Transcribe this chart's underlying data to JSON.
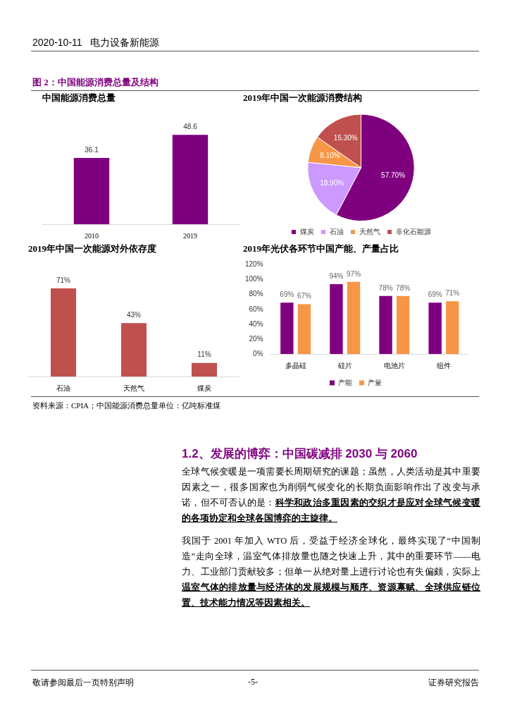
{
  "chart_data": [
    {
      "type": "bar",
      "title": "中国能源消费总量",
      "categories": [
        "2010",
        "2019"
      ],
      "values": [
        36.1,
        48.6
      ],
      "color": "#7f007f",
      "data_labels": true
    },
    {
      "type": "pie",
      "title": "2019年中国一次能源消费结构",
      "categories": [
        "煤炭",
        "石油",
        "天然气",
        "非化石能源"
      ],
      "values": [
        57.7,
        18.9,
        8.1,
        15.3
      ],
      "colors": [
        "#7f007f",
        "#cc99ff",
        "#f79646",
        "#c0504d"
      ],
      "value_labels": [
        "57.70%",
        "18.90%",
        "8.10%",
        "15.30%"
      ],
      "legend": "bottom"
    },
    {
      "type": "bar",
      "title": "2019年中国一次能源对外依存度",
      "categories": [
        "石油",
        "天然气",
        "煤炭"
      ],
      "values": [
        71,
        43,
        11
      ],
      "color": "#c0504d",
      "value_labels": [
        "71%",
        "43%",
        "11%"
      ]
    },
    {
      "type": "bar",
      "title": "2019年光伏各环节中国产能、产量占比",
      "categories": [
        "多晶硅",
        "硅片",
        "电池片",
        "组件"
      ],
      "series": [
        {
          "name": "产能",
          "color": "#7f007f",
          "values": [
            69,
            94,
            78,
            69
          ],
          "value_labels": [
            "69%",
            "94%",
            "78%",
            "69%"
          ]
        },
        {
          "name": "产量",
          "color": "#f79646",
          "values": [
            67,
            97,
            78,
            71
          ],
          "value_labels": [
            "67%",
            "97%",
            "78%",
            "71%"
          ]
        }
      ],
      "ylim": [
        0,
        120
      ],
      "yticks": [
        {
          "value": 0,
          "label": "0%"
        },
        {
          "value": 20,
          "label": "20%"
        },
        {
          "value": 40,
          "label": "40%"
        },
        {
          "value": 60,
          "label": "60%"
        },
        {
          "value": 80,
          "label": "80%"
        },
        {
          "value": 100,
          "label": "100%"
        },
        {
          "value": 120,
          "label": "120%"
        }
      ],
      "legend": "bottom"
    },
    {
      "type": "other",
      "title": "图 2：中国能源消费总量及结构",
      "annotations": [
        "2020-10-11",
        "电力设备新能源",
        "资料来源：CPIA；中国能源消费总量单位：亿吨标准煤",
        "1.2、发展的博弈：中国碳减排 2030 与 2060",
        "全球气候变暖是一项需要长周期研究的课题；虽然，人类活动是其中重要因素之一，很多国家也为削弱气候变化的长期负面影响作出了改变与承诺，但不可否认的是：",
        "科学和政治多重因素的交织才是应对全球气候变暖的各项协定和全球各国博弈的主旋律。",
        "我国于 2001 年加入 WTO 后，受益于经济全球化，最终实现了“中国制造”走向全球，温室气体排放量也随之快速上升，其中的重要环节——电力、工业部门贡献较多；但单一从绝对量上进行讨论也有失偏颇，实际上",
        "温室气体的排放量与经济体的发展规模与顺序、资源禀赋、全球供应链位置、技术能力情况等因素相关。",
        "敬请参阅最后一页特别声明",
        "-5-",
        "证券研究报告"
      ]
    }
  ]
}
